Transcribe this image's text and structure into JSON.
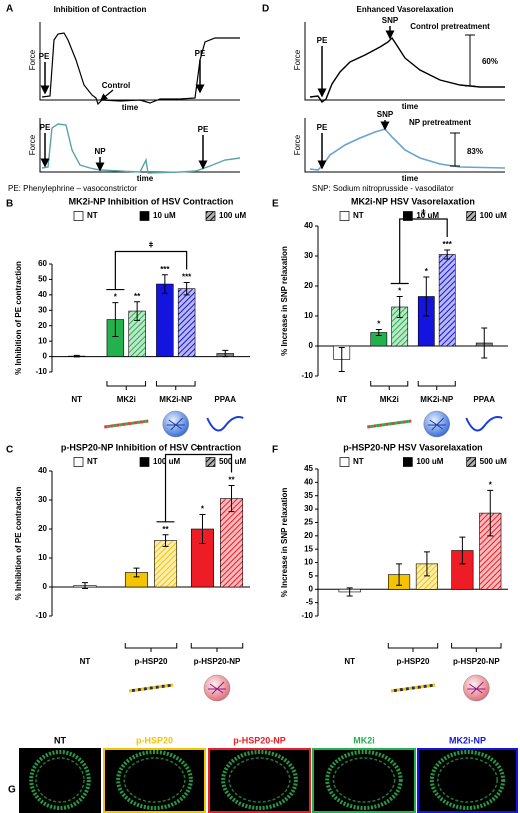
{
  "panel_a": {
    "letter": "A",
    "title": "Inhibition of Contraction",
    "top": {
      "labels": [
        "PE",
        "Control",
        "PE"
      ],
      "x_label": "time",
      "y_label": "Force"
    },
    "bottom": {
      "labels": [
        "PE",
        "NP",
        "PE"
      ],
      "x_label": "time",
      "y_label": "Force"
    },
    "caption": "PE: Phenylephrine – vasoconstrictor"
  },
  "panel_d": {
    "letter": "D",
    "title": "Enhanced Vasorelaxation",
    "top": {
      "labels": [
        "PE",
        "SNP"
      ],
      "annotation": "Control pretreatment",
      "percent": "60%",
      "x_label": "time",
      "y_label": "Force"
    },
    "bottom": {
      "labels": [
        "PE",
        "SNP"
      ],
      "annotation": "NP pretreatment",
      "percent": "83%",
      "x_label": "time",
      "y_label": "Force"
    },
    "caption": "SNP: Sodium nitroprusside - vasodilator"
  },
  "panel_g": {
    "letter": "G",
    "labels": [
      "NT",
      "p-HSP20",
      "p-HSP20-NP",
      "MK2i",
      "MK2i-NP"
    ],
    "label_colors": [
      "#000000",
      "#f5c400",
      "#ee1c24",
      "#22b14c",
      "#1414e0"
    ],
    "border_colors": [
      "#000000",
      "#f5c400",
      "#ee1c24",
      "#22b14c",
      "#1414e0"
    ]
  },
  "chart_data": [
    {
      "type": "bar",
      "letter": "B",
      "title": "MK2i-NP Inhibition of HSV Contraction",
      "y_label": "% Inhibition of PE contraction",
      "categories": [
        "NT",
        "MK2i",
        "MK2i-NP",
        "PPAA"
      ],
      "ylim": [
        -10,
        60
      ],
      "yticks": [
        -10,
        0,
        10,
        20,
        30,
        40,
        50,
        60
      ],
      "significance_symbol": "ǂ",
      "series": [
        {
          "name": "NT",
          "color": "#ffffff",
          "pattern": "solid",
          "values": [
            0.3,
            null,
            null,
            null
          ],
          "errors": [
            0.5,
            null,
            null,
            null
          ],
          "bar_colors": [
            "#ffffff",
            null,
            null,
            null
          ],
          "stars": [
            null,
            null,
            null,
            null
          ]
        },
        {
          "name": "10 uM",
          "color": "#000000",
          "pattern": "solid",
          "values": [
            null,
            24,
            47,
            2
          ],
          "errors": [
            null,
            11,
            6,
            2
          ],
          "bar_colors": [
            null,
            "#22b14c",
            "#1414e0",
            "#7f7f7f"
          ],
          "stars": [
            null,
            "*",
            "***",
            null
          ]
        },
        {
          "name": "100 uM",
          "color": "#000000",
          "pattern": "hatch",
          "values": [
            null,
            29.5,
            44,
            null
          ],
          "errors": [
            null,
            6,
            4,
            null
          ],
          "bar_colors": [
            null,
            "#22b14c",
            "#1414e0",
            null
          ],
          "stars": [
            null,
            "**",
            "***",
            null
          ]
        }
      ]
    },
    {
      "type": "bar",
      "letter": "E",
      "title": "MK2i-NP HSV Vasorelaxation",
      "y_label": "% Increase in SNP relaxation",
      "categories": [
        "NT",
        "MK2i",
        "MK2i-NP",
        "PPAA"
      ],
      "ylim": [
        -10,
        40
      ],
      "yticks": [
        -10,
        0,
        10,
        20,
        30,
        40
      ],
      "significance_symbol": "ǂ",
      "series": [
        {
          "name": "NT",
          "color": "#ffffff",
          "pattern": "solid",
          "values": [
            -4.5,
            null,
            null,
            null
          ],
          "errors": [
            4,
            null,
            null,
            null
          ],
          "bar_colors": [
            "#ffffff",
            null,
            null,
            null
          ],
          "stars": [
            null,
            null,
            null,
            null
          ]
        },
        {
          "name": "10 uM",
          "color": "#000000",
          "pattern": "solid",
          "values": [
            null,
            4.5,
            16.5,
            1
          ],
          "errors": [
            null,
            1,
            6.5,
            5
          ],
          "bar_colors": [
            null,
            "#22b14c",
            "#1414e0",
            "#7f7f7f"
          ],
          "stars": [
            null,
            "*",
            "*",
            null
          ]
        },
        {
          "name": "100 uM",
          "color": "#000000",
          "pattern": "hatch",
          "values": [
            null,
            13,
            30.5,
            null
          ],
          "errors": [
            null,
            3.5,
            1.5,
            null
          ],
          "bar_colors": [
            null,
            "#22b14c",
            "#1414e0",
            null
          ],
          "stars": [
            null,
            "*",
            "***",
            null
          ]
        }
      ]
    },
    {
      "type": "bar",
      "letter": "C",
      "title": "p-HSP20-NP Inhibition of HSV Contraction",
      "y_label": "% Inhibition of PE contraction",
      "categories": [
        "NT",
        "p-HSP20",
        "p-HSP20-NP"
      ],
      "ylim": [
        -10,
        40
      ],
      "yticks": [
        -10,
        0,
        10,
        20,
        30,
        40
      ],
      "significance_symbol": "ǂ",
      "series": [
        {
          "name": "NT",
          "color": "#ffffff",
          "pattern": "solid",
          "values": [
            0.5,
            null,
            null
          ],
          "errors": [
            1,
            null,
            null
          ],
          "bar_colors": [
            "#ffffff",
            null,
            null
          ],
          "stars": [
            null,
            null,
            null
          ]
        },
        {
          "name": "100 uM",
          "color": "#000000",
          "pattern": "solid",
          "values": [
            null,
            5,
            20
          ],
          "errors": [
            null,
            1.5,
            5
          ],
          "bar_colors": [
            null,
            "#f5c400",
            "#ee1c24"
          ],
          "stars": [
            null,
            null,
            "*"
          ]
        },
        {
          "name": "500 uM",
          "color": "#000000",
          "pattern": "hatch",
          "values": [
            null,
            16,
            30.5
          ],
          "errors": [
            null,
            2,
            4.5
          ],
          "bar_colors": [
            null,
            "#f5c400",
            "#ee1c24"
          ],
          "stars": [
            null,
            "**",
            "**"
          ]
        }
      ]
    },
    {
      "type": "bar",
      "letter": "F",
      "title": "p-HSP20-NP HSV Vasorelaxation",
      "y_label": "% Increase in SNP relaxation",
      "categories": [
        "NT",
        "p-HSP20",
        "p-HSP20-NP"
      ],
      "ylim": [
        -10,
        45
      ],
      "yticks": [
        -10,
        -5,
        0,
        5,
        10,
        15,
        20,
        25,
        30,
        35,
        40,
        45
      ],
      "series": [
        {
          "name": "NT",
          "color": "#ffffff",
          "pattern": "solid",
          "values": [
            -1,
            null,
            null
          ],
          "errors": [
            1.5,
            null,
            null
          ],
          "bar_colors": [
            "#ffffff",
            null,
            null
          ],
          "stars": [
            null,
            null,
            null
          ]
        },
        {
          "name": "100 uM",
          "color": "#000000",
          "pattern": "solid",
          "values": [
            null,
            5.5,
            14.5
          ],
          "errors": [
            null,
            4,
            5
          ],
          "bar_colors": [
            null,
            "#f5c400",
            "#ee1c24"
          ],
          "stars": [
            null,
            null,
            null
          ]
        },
        {
          "name": "500 uM",
          "color": "#000000",
          "pattern": "hatch",
          "values": [
            null,
            9.5,
            28.5
          ],
          "errors": [
            null,
            4.5,
            8.5
          ],
          "bar_colors": [
            null,
            "#f5c400",
            "#ee1c24"
          ],
          "stars": [
            null,
            null,
            "*"
          ]
        }
      ]
    }
  ]
}
